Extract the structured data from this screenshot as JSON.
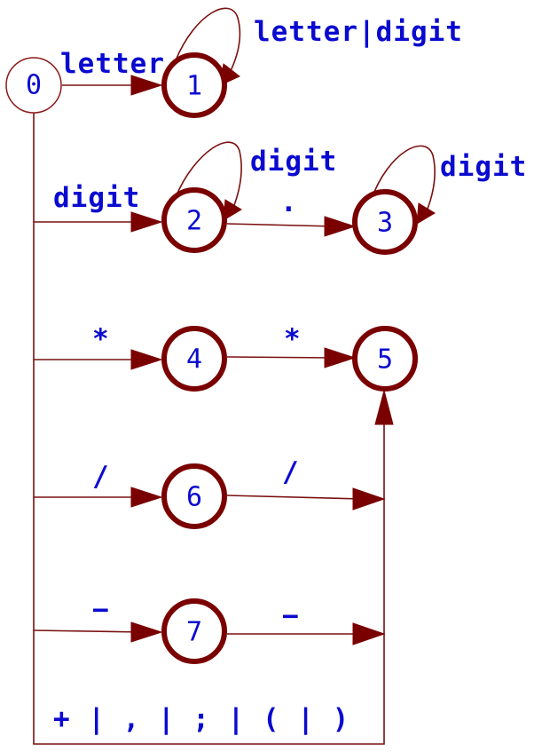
{
  "diagram": {
    "states": {
      "s0": "0",
      "s1": "1",
      "s2": "2",
      "s3": "3",
      "s4": "4",
      "s5": "5",
      "s6": "6",
      "s7": "7"
    },
    "edges": {
      "e0_1": "letter",
      "e1_1": "letter|digit",
      "e0_2": "digit",
      "e2_2": "digit",
      "e2_3": ".",
      "e3_3": "digit",
      "e0_4": "*",
      "e4_5": "*",
      "e0_6": "/",
      "e6_5": "/",
      "e0_7": "−",
      "e7_5": "−",
      "e0_5": "+ | , | ; | ( | )"
    },
    "colors": {
      "state_ring": "#7a0000",
      "wire": "#7a1010",
      "label": "#0a0ad0"
    }
  }
}
